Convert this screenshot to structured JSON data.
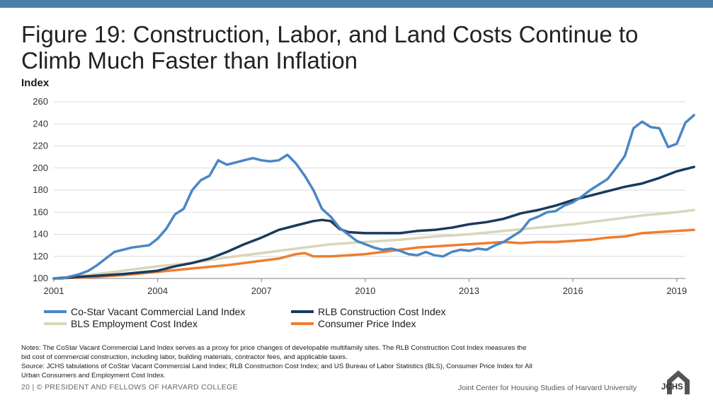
{
  "header": {
    "title": "Figure 19: Construction, Labor, and Land Costs Continue to Climb Much Faster than Inflation",
    "logo_text": "JCHS"
  },
  "colors": {
    "top_bar": "#4a7fa8",
    "costar": "#4a86c5",
    "rlb": "#1b3a5c",
    "bls": "#d9d5b9",
    "cpi": "#ee7d31"
  },
  "chart_data": {
    "type": "line",
    "ylabel": "Index",
    "xlabel": "",
    "ylim": [
      100,
      260
    ],
    "yticks": [
      100,
      120,
      140,
      160,
      180,
      200,
      220,
      240,
      260
    ],
    "xlim": [
      2001,
      2019.25
    ],
    "xticks": [
      2001,
      2004,
      2007,
      2010,
      2013,
      2016,
      2019
    ],
    "grid": true,
    "legend_placement": "bottom",
    "series": [
      {
        "name": "Co-Star Vacant Commercial Land Index",
        "color": "#4a86c5",
        "points": [
          [
            2001,
            100
          ],
          [
            2001.25,
            100
          ],
          [
            2001.5,
            102
          ],
          [
            2001.75,
            104
          ],
          [
            2002,
            107
          ],
          [
            2002.25,
            112
          ],
          [
            2002.5,
            118
          ],
          [
            2002.75,
            124
          ],
          [
            2003,
            126
          ],
          [
            2003.25,
            128
          ],
          [
            2003.5,
            129
          ],
          [
            2003.75,
            130
          ],
          [
            2004,
            136
          ],
          [
            2004.25,
            145
          ],
          [
            2004.5,
            158
          ],
          [
            2004.75,
            163
          ],
          [
            2005,
            180
          ],
          [
            2005.25,
            189
          ],
          [
            2005.5,
            193
          ],
          [
            2005.75,
            207
          ],
          [
            2006,
            203
          ],
          [
            2006.25,
            205
          ],
          [
            2006.5,
            207
          ],
          [
            2006.75,
            209
          ],
          [
            2007,
            207
          ],
          [
            2007.25,
            206
          ],
          [
            2007.5,
            207
          ],
          [
            2007.75,
            212
          ],
          [
            2008,
            204
          ],
          [
            2008.25,
            193
          ],
          [
            2008.5,
            180
          ],
          [
            2008.75,
            163
          ],
          [
            2009,
            156
          ],
          [
            2009.25,
            146
          ],
          [
            2009.5,
            140
          ],
          [
            2009.75,
            134
          ],
          [
            2010,
            131
          ],
          [
            2010.25,
            128
          ],
          [
            2010.5,
            126
          ],
          [
            2010.75,
            127
          ],
          [
            2011,
            125
          ],
          [
            2011.25,
            122
          ],
          [
            2011.5,
            121
          ],
          [
            2011.75,
            124
          ],
          [
            2012,
            121
          ],
          [
            2012.25,
            120
          ],
          [
            2012.5,
            124
          ],
          [
            2012.75,
            126
          ],
          [
            2013,
            125
          ],
          [
            2013.25,
            127
          ],
          [
            2013.5,
            126
          ],
          [
            2013.75,
            130
          ],
          [
            2014,
            133
          ],
          [
            2014.25,
            138
          ],
          [
            2014.5,
            143
          ],
          [
            2014.75,
            153
          ],
          [
            2015,
            156
          ],
          [
            2015.25,
            160
          ],
          [
            2015.5,
            161
          ],
          [
            2015.75,
            166
          ],
          [
            2016,
            169
          ],
          [
            2016.25,
            174
          ],
          [
            2016.5,
            180
          ],
          [
            2016.75,
            185
          ],
          [
            2017,
            190
          ],
          [
            2017.25,
            200
          ],
          [
            2017.5,
            211
          ],
          [
            2017.75,
            236
          ],
          [
            2018,
            242
          ],
          [
            2018.25,
            237
          ],
          [
            2018.5,
            236
          ],
          [
            2018.75,
            219
          ],
          [
            2019,
            222
          ],
          [
            2019.25,
            241
          ],
          [
            2019.5,
            248
          ]
        ]
      },
      {
        "name": "RLB Construction Cost Index",
        "color": "#1b3a5c",
        "points": [
          [
            2001,
            100
          ],
          [
            2002,
            102
          ],
          [
            2003,
            104
          ],
          [
            2004,
            107
          ],
          [
            2004.5,
            111
          ],
          [
            2005,
            114
          ],
          [
            2005.5,
            118
          ],
          [
            2006,
            124
          ],
          [
            2006.5,
            131
          ],
          [
            2007,
            137
          ],
          [
            2007.5,
            144
          ],
          [
            2008,
            148
          ],
          [
            2008.5,
            152
          ],
          [
            2008.75,
            153
          ],
          [
            2009,
            152
          ],
          [
            2009.25,
            145
          ],
          [
            2009.5,
            142
          ],
          [
            2010,
            141
          ],
          [
            2010.5,
            141
          ],
          [
            2011,
            141
          ],
          [
            2011.5,
            143
          ],
          [
            2012,
            144
          ],
          [
            2012.5,
            146
          ],
          [
            2013,
            149
          ],
          [
            2013.5,
            151
          ],
          [
            2014,
            154
          ],
          [
            2014.5,
            159
          ],
          [
            2015,
            162
          ],
          [
            2015.5,
            166
          ],
          [
            2016,
            171
          ],
          [
            2016.5,
            175
          ],
          [
            2017,
            179
          ],
          [
            2017.5,
            183
          ],
          [
            2018,
            186
          ],
          [
            2018.5,
            191
          ],
          [
            2019,
            197
          ],
          [
            2019.5,
            201
          ]
        ]
      },
      {
        "name": "BLS Employment Cost Index",
        "color": "#d9d5b9",
        "points": [
          [
            2001,
            100
          ],
          [
            2002,
            103
          ],
          [
            2003,
            107
          ],
          [
            2004,
            111
          ],
          [
            2005,
            114
          ],
          [
            2006,
            119
          ],
          [
            2007,
            123
          ],
          [
            2008,
            127
          ],
          [
            2009,
            131
          ],
          [
            2010,
            133
          ],
          [
            2011,
            135
          ],
          [
            2012,
            138
          ],
          [
            2013,
            140
          ],
          [
            2014,
            143
          ],
          [
            2015,
            146
          ],
          [
            2016,
            149
          ],
          [
            2017,
            153
          ],
          [
            2018,
            157
          ],
          [
            2019,
            160
          ],
          [
            2019.5,
            162
          ]
        ]
      },
      {
        "name": "Consumer Price Index",
        "color": "#ee7d31",
        "points": [
          [
            2001,
            100
          ],
          [
            2002,
            101
          ],
          [
            2003,
            103
          ],
          [
            2004,
            106
          ],
          [
            2005,
            109
          ],
          [
            2006,
            112
          ],
          [
            2006.5,
            114
          ],
          [
            2007,
            116
          ],
          [
            2007.5,
            118
          ],
          [
            2008,
            122
          ],
          [
            2008.25,
            123
          ],
          [
            2008.5,
            120
          ],
          [
            2009,
            120
          ],
          [
            2009.5,
            121
          ],
          [
            2010,
            122
          ],
          [
            2010.5,
            124
          ],
          [
            2011,
            126
          ],
          [
            2011.5,
            128
          ],
          [
            2012,
            129
          ],
          [
            2013,
            131
          ],
          [
            2014,
            133
          ],
          [
            2014.5,
            132
          ],
          [
            2015,
            133
          ],
          [
            2015.5,
            133
          ],
          [
            2016,
            134
          ],
          [
            2016.5,
            135
          ],
          [
            2017,
            137
          ],
          [
            2017.5,
            138
          ],
          [
            2018,
            141
          ],
          [
            2018.5,
            142
          ],
          [
            2019,
            143
          ],
          [
            2019.5,
            144
          ]
        ]
      }
    ]
  },
  "notes": {
    "line1": "Notes: The CoStar Vacant Commercial Land Index serves as a proxy for price changes of developable multifamily sites. The RLB Construction Cost Index measures the",
    "line2": "bid cost of commercial construction, including labor, building materials, contractor fees, and applicable taxes.",
    "line3": "Source: JCHS tabulations of CoStar Vacant Commercial Land Index; RLB Construction Cost Index; and US Bureau of Labor Statistics (BLS), Consumer Price Index for All",
    "line4": "Urban Consumers and Employment Cost Index."
  },
  "footer": {
    "left": "20 | © PRESIDENT AND FELLOWS OF HARVARD COLLEGE",
    "right": "Joint Center for Housing Studies of Harvard University"
  }
}
